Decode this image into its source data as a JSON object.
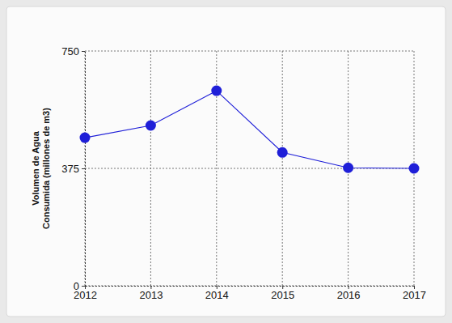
{
  "chart_data": {
    "type": "line",
    "y_label": "Volumen de Agua Consumida (millones de m3)",
    "x": [
      2012,
      2013,
      2014,
      2015,
      2016,
      2017
    ],
    "values": [
      473,
      512,
      623,
      426,
      377,
      375
    ],
    "color": "#1f1fd8",
    "marker": "circle",
    "line_style": "solid",
    "xlim": [
      2012,
      2017
    ],
    "xticks": [
      2012,
      2013,
      2014,
      2015,
      2016,
      2017
    ],
    "ylim": [
      0,
      750
    ],
    "yticks": [
      0,
      375,
      750
    ],
    "grid": true
  }
}
